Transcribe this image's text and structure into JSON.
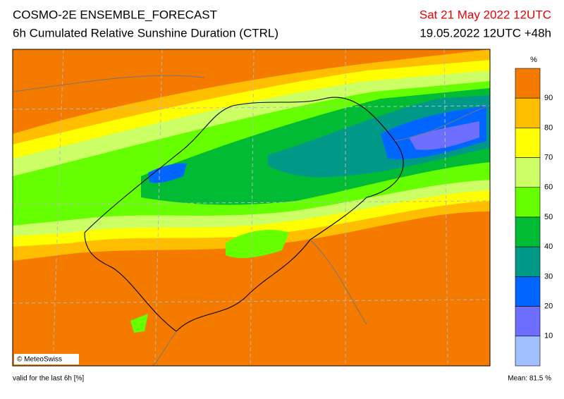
{
  "header": {
    "title": "COSMO-2E ENSEMBLE_FORECAST",
    "subtitle": "6h Cumulated Relative Sunshine Duration (CTRL)",
    "valid_date": "Sat 21 May 2022 12UTC",
    "run": "19.05.2022 12UTC +48h"
  },
  "legend": {
    "unit": "%",
    "ticks": [
      90,
      80,
      70,
      60,
      50,
      40,
      30,
      20,
      10
    ],
    "colors": [
      "#f57a00",
      "#ffbf00",
      "#ffff00",
      "#ccff66",
      "#66ff00",
      "#00bb33",
      "#009988",
      "#0066ff",
      "#6f6fff",
      "#a0c0ff"
    ]
  },
  "copyright": "© MeteoSwiss",
  "footer": {
    "note": "valid for the last 6h [%]",
    "mean": "Mean:  81.5 %"
  }
}
